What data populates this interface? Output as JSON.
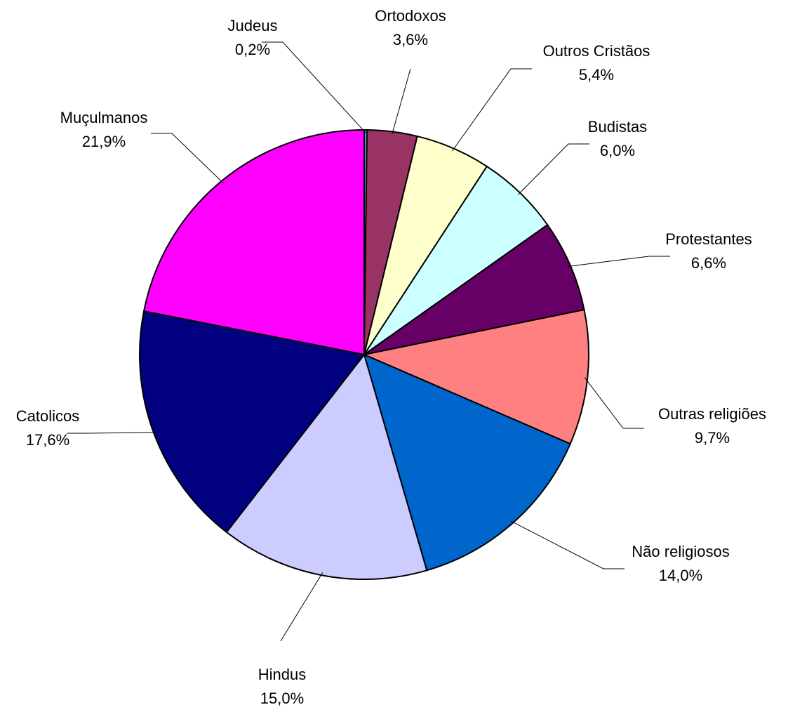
{
  "chart_data": {
    "type": "pie",
    "unit": "%",
    "slices": [
      {
        "label": "Judeus",
        "value": 0.2,
        "value_label": "0,2%",
        "color": "#6699FF"
      },
      {
        "label": "Ortodoxos",
        "value": 3.6,
        "value_label": "3,6%",
        "color": "#993366"
      },
      {
        "label": "Outros Cristãos",
        "value": 5.4,
        "value_label": "5,4%",
        "color": "#FFFFCC"
      },
      {
        "label": "Budistas",
        "value": 6.0,
        "value_label": "6,0%",
        "color": "#CCFFFF"
      },
      {
        "label": "Protestantes",
        "value": 6.6,
        "value_label": "6,6%",
        "color": "#660066"
      },
      {
        "label": "Outras religiões",
        "value": 9.7,
        "value_label": "9,7%",
        "color": "#FF8080"
      },
      {
        "label": "Não religiosos",
        "value": 14.0,
        "value_label": "14,0%",
        "color": "#0066CC"
      },
      {
        "label": "Hindus",
        "value": 15.0,
        "value_label": "15,0%",
        "color": "#CCCCFF"
      },
      {
        "label": "Catolicos",
        "value": 17.6,
        "value_label": "17,6%",
        "color": "#000080"
      },
      {
        "label": "Muçulmanos",
        "value": 21.9,
        "value_label": "21,9%",
        "color": "#FF00FF"
      }
    ],
    "start_angle": "12 o'clock",
    "direction": "clockwise",
    "legend": "none"
  }
}
